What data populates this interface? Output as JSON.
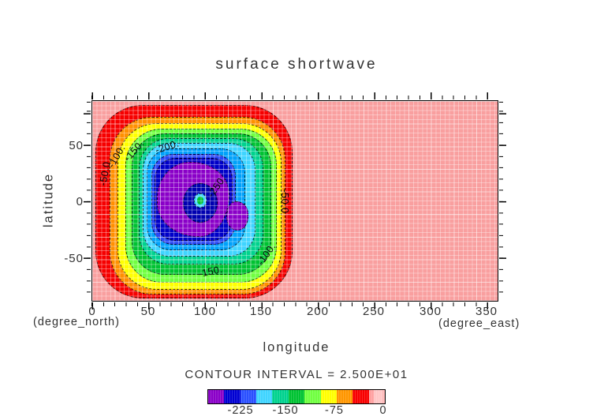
{
  "title": "surface shortwave",
  "plot": {
    "xlabel": "longitude",
    "ylabel": "latitude",
    "x_unit": "(degree_east)",
    "y_unit": "(degree_north)",
    "x_ticks": [
      "0",
      "50",
      "100",
      "150",
      "200",
      "250",
      "300",
      "350"
    ],
    "y_ticks": [
      "50",
      "0",
      "-50"
    ],
    "contour_labels": [
      "-50.0",
      "-100.",
      "-150.",
      "-200.",
      "-250.",
      "-150.",
      "-100.",
      "-50.0"
    ]
  },
  "legend": {
    "contour_interval_label": "CONTOUR INTERVAL = 2.500E+01",
    "tick_labels": [
      "-225",
      "-150",
      "-75",
      "0"
    ],
    "colors": [
      "#8a00c8",
      "#0000d2",
      "#2a50ff",
      "#3fd4ff",
      "#00d28e",
      "#00c232",
      "#70ff40",
      "#ffff00",
      "#ff9600",
      "#f80000",
      "#ff9f9f"
    ]
  },
  "chart_data": {
    "type": "filled-contour",
    "title": "surface shortwave",
    "xlabel": "longitude",
    "ylabel": "latitude",
    "x_unit": "degree_east",
    "y_unit": "degree_north",
    "xlim": [
      0,
      360
    ],
    "ylim": [
      -89,
      89
    ],
    "x_tick_values": [
      0,
      50,
      100,
      150,
      200,
      250,
      300,
      350
    ],
    "y_tick_values": [
      -50,
      0,
      50
    ],
    "contour_interval": 25,
    "fill_levels": [
      -275,
      -250,
      -225,
      -200,
      -175,
      -150,
      -125,
      -100,
      -75,
      -50,
      -25,
      0
    ],
    "labeled_contours": [
      -250,
      -200,
      -150,
      -100,
      -50
    ],
    "colorbar_tick_values": [
      -225,
      -150,
      -75,
      0
    ],
    "grid": true,
    "legend_position": "bottom",
    "field_description": "Concentric rounded-square negative anomaly centered near lon 90, lat 0; background near 0 (pink) over lon 0-360, lat -89 to 89; minimum below -275 at the center (small cyan/green wrapped-palette spot)",
    "center": {
      "lon": 91,
      "lat": 1
    }
  }
}
